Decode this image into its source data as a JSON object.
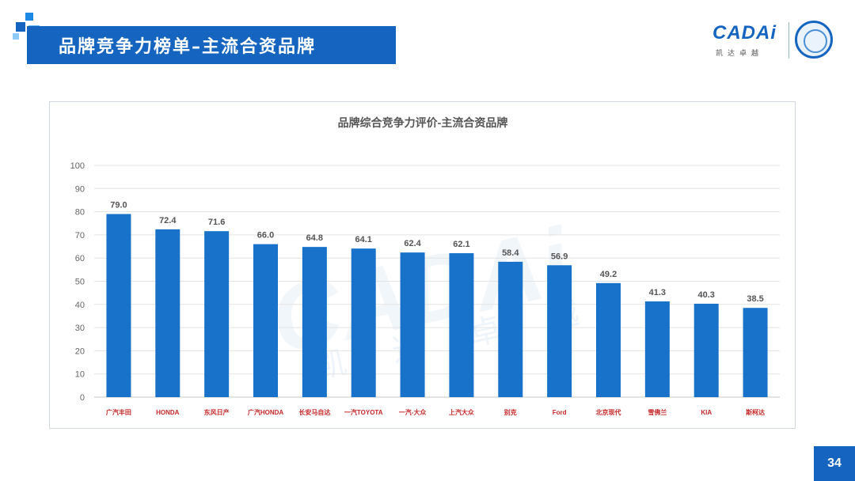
{
  "header": {
    "title": "品牌竞争力榜单–主流合资品牌",
    "logo_text": "CADAi",
    "logo_subtext": "凯达卓越",
    "page_number": "34"
  },
  "colors": {
    "brand_blue": "#1565c0",
    "bar_blue": "#1872c9"
  },
  "chart_data": {
    "type": "bar",
    "title": "品牌综合竞争力评价-主流合资品牌",
    "categories": [
      "广汽丰田",
      "HONDA",
      "东风日产",
      "广汽HONDA",
      "长安马自达",
      "一汽TOYOTA",
      "一汽-大众",
      "上汽大众",
      "别克",
      "Ford",
      "北京现代",
      "雪佛兰",
      "KIA",
      "斯柯达"
    ],
    "values": [
      79.0,
      72.4,
      71.6,
      66.0,
      64.8,
      64.1,
      62.4,
      62.1,
      58.4,
      56.9,
      49.2,
      41.3,
      40.3,
      38.5
    ],
    "value_labels": [
      "79.0",
      "72.4",
      "71.6",
      "66.0",
      "64.8",
      "64.1",
      "62.4",
      "62.1",
      "58.4",
      "56.9",
      "49.2",
      "41.3",
      "40.3",
      "38.5"
    ],
    "yticks": [
      "0",
      "10",
      "20",
      "30",
      "40",
      "50",
      "60",
      "70",
      "80",
      "90",
      "100"
    ],
    "ylim": [
      0,
      100
    ],
    "grid": true,
    "xlabel": "",
    "ylabel": "",
    "watermark": "CADAi",
    "watermark_sub": "凯达卓越"
  }
}
